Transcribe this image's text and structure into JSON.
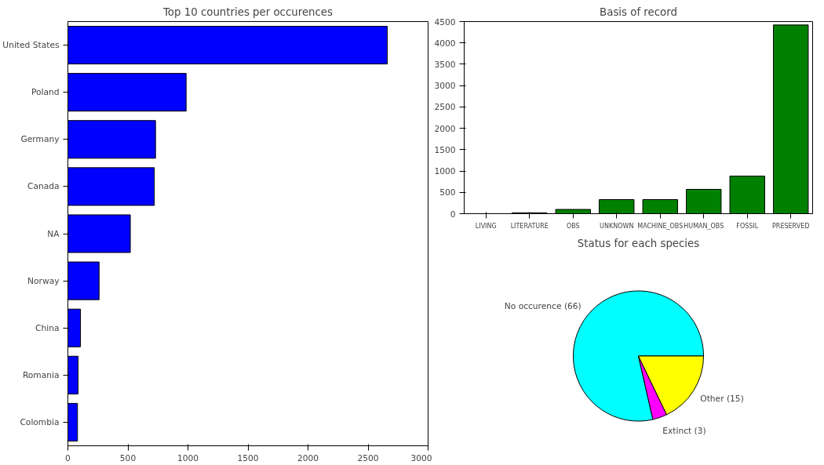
{
  "chart_data": [
    {
      "type": "bar",
      "orientation": "horizontal",
      "title": "Top 10 countries per occurences",
      "categories": [
        "United States",
        "Poland",
        "Germany",
        "Canada",
        "NA",
        "Norway",
        "China",
        "Romania",
        "Colombia"
      ],
      "values": [
        2660,
        985,
        730,
        720,
        520,
        260,
        105,
        85,
        80
      ],
      "color": "#0000ff",
      "xlim": [
        0,
        3000
      ],
      "xticks": [
        0,
        500,
        1000,
        1500,
        2000,
        2500,
        3000
      ],
      "grid": false
    },
    {
      "type": "bar",
      "title": "Basis of record",
      "categories": [
        "LIVING",
        "LITERATURE",
        "OBS",
        "UNKNOWN",
        "MACHINE_OBS",
        "HUMAN_OBS",
        "FOSSIL",
        "PRESERVED"
      ],
      "values": [
        0,
        20,
        100,
        330,
        330,
        570,
        880,
        4420
      ],
      "color": "#008000",
      "ylim": [
        0,
        4500
      ],
      "yticks": [
        0,
        500,
        1000,
        1500,
        2000,
        2500,
        3000,
        3500,
        4000,
        4500
      ],
      "grid": false
    },
    {
      "type": "pie",
      "title": "Status for each species",
      "categories": [
        "No occurence (66)",
        "Extinct (3)",
        "Other (15)"
      ],
      "values": [
        66,
        3,
        15
      ],
      "colors": [
        "#00ffff",
        "#ff00ff",
        "#ffff00"
      ]
    }
  ]
}
